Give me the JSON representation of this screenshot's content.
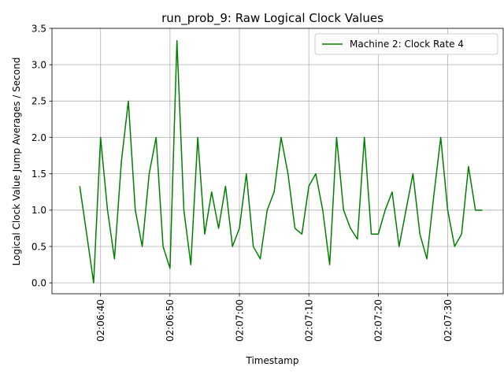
{
  "chart_data": {
    "type": "line",
    "title": "run_prob_9: Raw Logical Clock Values",
    "xlabel": "Timestamp",
    "ylabel": "Logical Clock Value Jump Averages / Second",
    "ylim": [
      -0.15,
      3.5
    ],
    "yticks": [
      0.0,
      0.5,
      1.0,
      1.5,
      2.0,
      2.5,
      3.0,
      3.5
    ],
    "ytick_labels": [
      "0.0",
      "0.5",
      "1.0",
      "1.5",
      "2.0",
      "2.5",
      "3.0",
      "3.5"
    ],
    "xlim": [
      "02:06:33",
      "02:07:38"
    ],
    "xticks": [
      "02:06:40",
      "02:06:50",
      "02:07:00",
      "02:07:10",
      "02:07:20",
      "02:07:30"
    ],
    "grid": true,
    "legend_position": "top-right",
    "series": [
      {
        "name": "Machine 2: Clock Rate 4",
        "color": "#008000",
        "x": [
          "02:06:37",
          "02:06:38",
          "02:06:39",
          "02:06:40",
          "02:06:41",
          "02:06:42",
          "02:06:43",
          "02:06:44",
          "02:06:45",
          "02:06:46",
          "02:06:47",
          "02:06:48",
          "02:06:49",
          "02:06:50",
          "02:06:51",
          "02:06:52",
          "02:06:53",
          "02:06:54",
          "02:06:55",
          "02:06:56",
          "02:06:57",
          "02:06:58",
          "02:06:59",
          "02:07:00",
          "02:07:01",
          "02:07:02",
          "02:07:03",
          "02:07:04",
          "02:07:05",
          "02:07:06",
          "02:07:07",
          "02:07:08",
          "02:07:09",
          "02:07:10",
          "02:07:11",
          "02:07:12",
          "02:07:13",
          "02:07:14",
          "02:07:15",
          "02:07:16",
          "02:07:17",
          "02:07:18",
          "02:07:19",
          "02:07:20",
          "02:07:21",
          "02:07:22",
          "02:07:23",
          "02:07:24",
          "02:07:25",
          "02:07:26",
          "02:07:27",
          "02:07:28",
          "02:07:29",
          "02:07:30",
          "02:07:31",
          "02:07:32",
          "02:07:33",
          "02:07:34",
          "02:07:35"
        ],
        "values": [
          1.33,
          0.67,
          0.0,
          2.0,
          1.0,
          0.33,
          1.67,
          2.5,
          1.0,
          0.5,
          1.5,
          2.0,
          0.5,
          0.2,
          3.33,
          1.0,
          0.25,
          2.0,
          0.67,
          1.25,
          0.75,
          1.33,
          0.5,
          0.75,
          1.5,
          0.5,
          0.33,
          1.0,
          1.25,
          2.0,
          1.5,
          0.75,
          0.67,
          1.33,
          1.5,
          1.0,
          0.25,
          2.0,
          1.0,
          0.75,
          0.6,
          2.0,
          0.67,
          0.67,
          1.0,
          1.25,
          0.5,
          1.0,
          1.5,
          0.67,
          0.33,
          1.2,
          2.0,
          1.0,
          0.5,
          0.67,
          1.6,
          1.0,
          1.0
        ]
      }
    ]
  }
}
